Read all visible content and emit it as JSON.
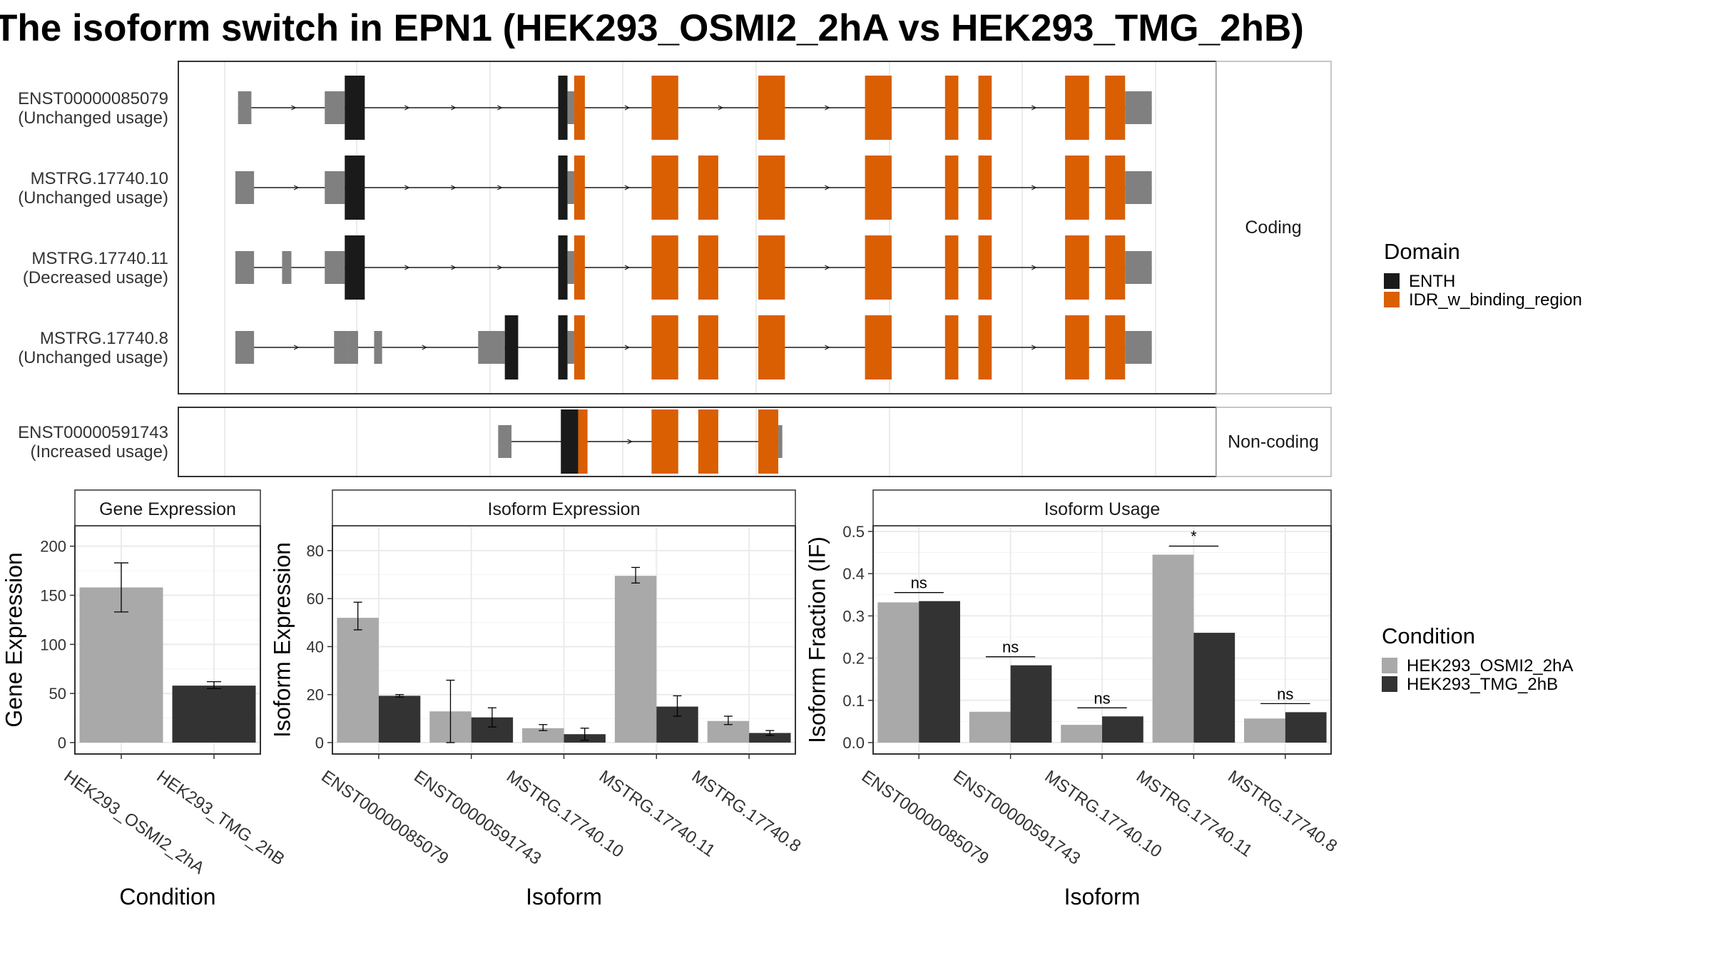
{
  "title": "The isoform switch in EPN1 (HEK293_OSMI2_2hA vs HEK293_TMG_2hB)",
  "colors": {
    "ENTH": "#1a1a1a",
    "IDR_w_binding_region": "#d95f02",
    "utr": "#808080",
    "HEK293_OSMI2_2hA": "#a9a9a9",
    "HEK293_TMG_2hB": "#333333"
  },
  "structure": {
    "panels": [
      {
        "strip": "Coding",
        "isoforms": [
          {
            "id": "ENST00000085079",
            "usage": "(Unchanged usage)",
            "exons": [
              [
                1,
                2,
                "u"
              ],
              [
                7.5,
                9,
                "u"
              ],
              [
                9,
                10.5,
                "c"
              ],
              [
                25,
                25.7,
                "c"
              ],
              [
                25.7,
                26.2,
                "u"
              ],
              [
                26.2,
                27,
                "i"
              ],
              [
                32,
                34,
                "i"
              ],
              [
                40,
                42,
                "i"
              ],
              [
                48,
                50,
                "i"
              ],
              [
                54,
                55,
                "i"
              ],
              [
                56.5,
                57.5,
                "i"
              ],
              [
                63,
                64.8,
                "i"
              ],
              [
                66,
                67.5,
                "i"
              ],
              [
                67.5,
                69.5,
                "u"
              ]
            ]
          },
          {
            "id": "MSTRG.17740.10",
            "usage": "(Unchanged usage)",
            "exons": [
              [
                0.8,
                2.2,
                "u"
              ],
              [
                7.5,
                9,
                "u"
              ],
              [
                9,
                10.5,
                "c"
              ],
              [
                25,
                25.7,
                "c"
              ],
              [
                25.7,
                26.2,
                "u"
              ],
              [
                26.2,
                27,
                "i"
              ],
              [
                32,
                34,
                "i"
              ],
              [
                35.5,
                37,
                "i"
              ],
              [
                40,
                42,
                "i"
              ],
              [
                48,
                50,
                "i"
              ],
              [
                54,
                55,
                "i"
              ],
              [
                56.5,
                57.5,
                "i"
              ],
              [
                63,
                64.8,
                "i"
              ],
              [
                66,
                67.5,
                "i"
              ],
              [
                67.5,
                69.5,
                "u"
              ]
            ]
          },
          {
            "id": "MSTRG.17740.11",
            "usage": "(Decreased usage)",
            "exons": [
              [
                0.8,
                2.2,
                "u"
              ],
              [
                4.3,
                5,
                "u"
              ],
              [
                7.5,
                9,
                "u"
              ],
              [
                9,
                10.5,
                "c"
              ],
              [
                25,
                25.7,
                "c"
              ],
              [
                25.7,
                26.2,
                "u"
              ],
              [
                26.2,
                27,
                "i"
              ],
              [
                32,
                34,
                "i"
              ],
              [
                35.5,
                37,
                "i"
              ],
              [
                40,
                42,
                "i"
              ],
              [
                48,
                50,
                "i"
              ],
              [
                54,
                55,
                "i"
              ],
              [
                56.5,
                57.5,
                "i"
              ],
              [
                63,
                64.8,
                "i"
              ],
              [
                66,
                67.5,
                "i"
              ],
              [
                67.5,
                69.5,
                "u"
              ]
            ]
          },
          {
            "id": "MSTRG.17740.8",
            "usage": "(Unchanged usage)",
            "exons": [
              [
                0.8,
                2.2,
                "u"
              ],
              [
                8.2,
                9.2,
                "u"
              ],
              [
                9.2,
                10,
                "u"
              ],
              [
                11.2,
                11.8,
                "u"
              ],
              [
                19,
                20,
                "u"
              ],
              [
                20,
                21,
                "u"
              ],
              [
                21,
                22,
                "c"
              ],
              [
                25,
                25.7,
                "c"
              ],
              [
                25.7,
                26.2,
                "u"
              ],
              [
                26.2,
                27,
                "i"
              ],
              [
                32,
                34,
                "i"
              ],
              [
                35.5,
                37,
                "i"
              ],
              [
                40,
                42,
                "i"
              ],
              [
                48,
                50,
                "i"
              ],
              [
                54,
                55,
                "i"
              ],
              [
                56.5,
                57.5,
                "i"
              ],
              [
                63,
                64.8,
                "i"
              ],
              [
                66,
                67.5,
                "i"
              ],
              [
                67.5,
                69.5,
                "u"
              ]
            ]
          }
        ]
      },
      {
        "strip": "Non-coding",
        "isoforms": [
          {
            "id": "ENST00000591743",
            "usage": "(Increased usage)",
            "exons": [
              [
                20.5,
                21.5,
                "u"
              ],
              [
                25.2,
                26.5,
                "c"
              ],
              [
                26.5,
                27.2,
                "i"
              ],
              [
                32,
                34,
                "i"
              ],
              [
                35.5,
                37,
                "i"
              ],
              [
                40,
                41.5,
                "i"
              ],
              [
                41.5,
                41.8,
                "u"
              ]
            ]
          }
        ]
      }
    ]
  },
  "legend_domain": {
    "title": "Domain",
    "items": [
      "ENTH",
      "IDR_w_binding_region"
    ]
  },
  "legend_condition": {
    "title": "Condition",
    "items": [
      "HEK293_OSMI2_2hA",
      "HEK293_TMG_2hB"
    ]
  },
  "chart_data": [
    {
      "type": "bar",
      "strip": "Gene Expression",
      "xlabel": "Condition",
      "ylabel": "Gene Expression",
      "ylim": [
        0,
        215
      ],
      "yticks": [
        0,
        50,
        100,
        150,
        200
      ],
      "categories": [
        "HEK293_OSMI2_2hA",
        "HEK293_TMG_2hB"
      ],
      "values": [
        158,
        58
      ],
      "error_low": [
        133,
        55
      ],
      "error_high": [
        183,
        62
      ]
    },
    {
      "type": "bar",
      "strip": "Isoform Expression",
      "xlabel": "Isoform",
      "ylabel": "Isoform Expression",
      "ylim": [
        0,
        88
      ],
      "yticks": [
        0,
        20,
        40,
        60,
        80
      ],
      "categories": [
        "ENST00000085079",
        "ENST00000591743",
        "MSTRG.17740.10",
        "MSTRG.17740.11",
        "MSTRG.17740.8"
      ],
      "series": [
        {
          "name": "HEK293_OSMI2_2hA",
          "values": [
            52,
            13,
            6,
            69.5,
            9
          ],
          "error_low": [
            47,
            0,
            5,
            66.5,
            7.5
          ],
          "error_high": [
            58.5,
            26,
            7.5,
            73,
            11
          ]
        },
        {
          "name": "HEK293_TMG_2hB",
          "values": [
            19.5,
            10.5,
            3.5,
            15,
            4
          ],
          "error_low": [
            19,
            6.5,
            1,
            11,
            3
          ],
          "error_high": [
            20,
            14.5,
            6,
            19.5,
            5
          ]
        }
      ]
    },
    {
      "type": "bar",
      "strip": "Isoform Usage",
      "xlabel": "Isoform",
      "ylabel": "Isoform Fraction (IF)",
      "ylim": [
        0,
        0.5
      ],
      "yticks": [
        "0.0",
        "0.1",
        "0.2",
        "0.3",
        "0.4",
        "0.5"
      ],
      "categories": [
        "ENST00000085079",
        "ENST00000591743",
        "MSTRG.17740.10",
        "MSTRG.17740.11",
        "MSTRG.17740.8"
      ],
      "series": [
        {
          "name": "HEK293_OSMI2_2hA",
          "values": [
            0.332,
            0.073,
            0.042,
            0.445,
            0.057
          ]
        },
        {
          "name": "HEK293_TMG_2hB",
          "values": [
            0.335,
            0.183,
            0.062,
            0.26,
            0.072
          ]
        }
      ],
      "significance": [
        "ns",
        "ns",
        "ns",
        "*",
        "ns"
      ]
    }
  ]
}
